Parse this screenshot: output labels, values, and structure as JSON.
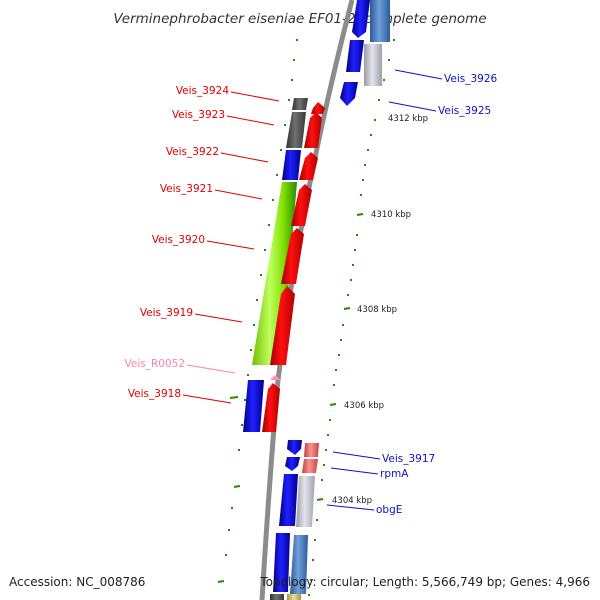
{
  "title": "Verminephrobacter eiseniae EF01-2, complete genome",
  "footer": {
    "accession": "Accession: NC_008786",
    "topology": "Topology: circular; Length: 5,566,749 bp; Genes: 4,966"
  },
  "colors": {
    "backbone": "#8c8c8c",
    "forward_label": "#e00000",
    "reverse_label": "#1010c0",
    "rna_label": "#ff80b0",
    "tick_mark": "#2a8a00",
    "cds_red": "#ff0000",
    "cds_blue": "#0000ff",
    "cds_grey": "#606060",
    "cds_lightgrey": "#c0c0c8",
    "cds_steel": "#4a80c0",
    "cds_pink": "#f07070",
    "rna_pink": "#ff90c0",
    "gc_lime": "#90f000",
    "gc_green": "#2a8a00",
    "gc_tan": "#d8c870"
  },
  "ticks": [
    {
      "label": "4312 kbp"
    },
    {
      "label": "4310 kbp"
    },
    {
      "label": "4308 kbp"
    },
    {
      "label": "4306 kbp"
    },
    {
      "label": "4304 kbp"
    }
  ],
  "genes": [
    {
      "label": "Veis_3926",
      "strand": "reverse"
    },
    {
      "label": "Veis_3925",
      "strand": "reverse"
    },
    {
      "label": "Veis_3924",
      "strand": "forward"
    },
    {
      "label": "Veis_3923",
      "strand": "forward"
    },
    {
      "label": "Veis_3922",
      "strand": "forward"
    },
    {
      "label": "Veis_3921",
      "strand": "forward"
    },
    {
      "label": "Veis_3920",
      "strand": "forward"
    },
    {
      "label": "Veis_3919",
      "strand": "forward"
    },
    {
      "label": "Veis_R0052",
      "strand": "rna"
    },
    {
      "label": "Veis_3918",
      "strand": "forward"
    },
    {
      "label": "Veis_3917",
      "strand": "reverse"
    },
    {
      "label": "rpmA",
      "strand": "reverse"
    },
    {
      "label": "obgE",
      "strand": "reverse"
    }
  ]
}
